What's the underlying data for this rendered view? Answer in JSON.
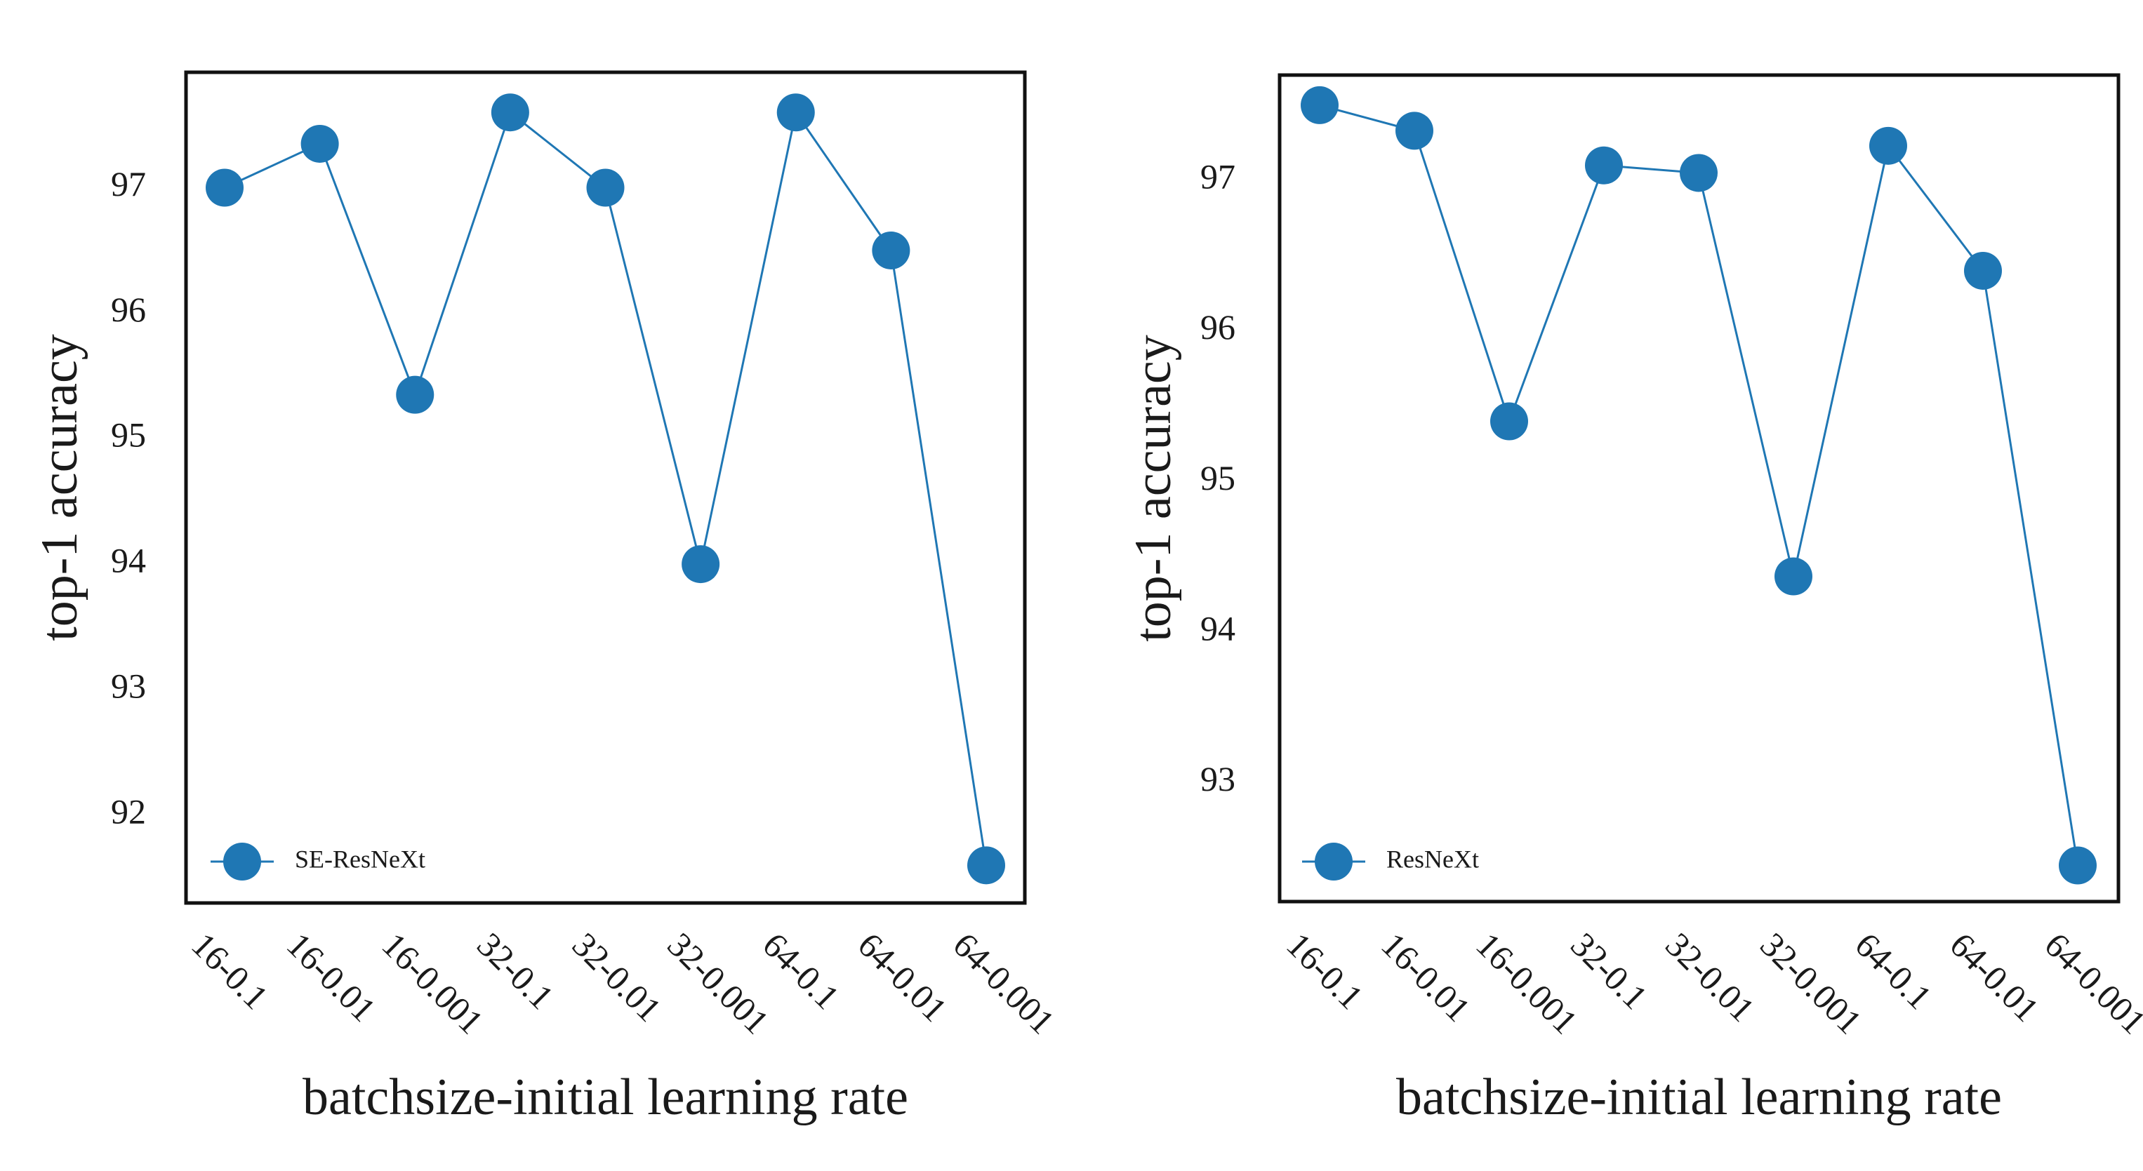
{
  "colors": {
    "series": "#1f77b4",
    "axes": "#111111",
    "text": "#1a1a1a"
  },
  "chart_data": [
    {
      "type": "line",
      "categories": [
        "16-0.1",
        "16-0.01",
        "16-0.001",
        "32-0.1",
        "32-0.01",
        "32-0.001",
        "64-0.1",
        "64-0.01",
        "64-0.001"
      ],
      "series": [
        {
          "name": "SE-ResNeXt",
          "values": [
            97.0,
            97.35,
            95.35,
            97.6,
            97.0,
            94.0,
            97.6,
            96.5,
            91.6
          ]
        }
      ],
      "yticks": [
        92,
        93,
        94,
        95,
        96,
        97
      ],
      "ylim": [
        91.3,
        97.92
      ],
      "xlabel": "batchsize-initial learning rate",
      "ylabel": "top-1 accuracy",
      "legend_loc": "lower-left",
      "grid": false
    },
    {
      "type": "line",
      "categories": [
        "16-0.1",
        "16-0.01",
        "16-0.001",
        "32-0.1",
        "32-0.01",
        "32-0.001",
        "64-0.1",
        "64-0.01",
        "64-0.001"
      ],
      "series": [
        {
          "name": "ResNeXt",
          "values": [
            97.5,
            97.33,
            95.4,
            97.1,
            97.05,
            94.37,
            97.23,
            96.4,
            92.45
          ]
        }
      ],
      "yticks": [
        93,
        94,
        95,
        96,
        97
      ],
      "ylim": [
        92.21,
        97.7
      ],
      "xlabel": "batchsize-initial learning rate",
      "ylabel": "top-1 accuracy",
      "legend_loc": "lower-left",
      "grid": false
    }
  ]
}
